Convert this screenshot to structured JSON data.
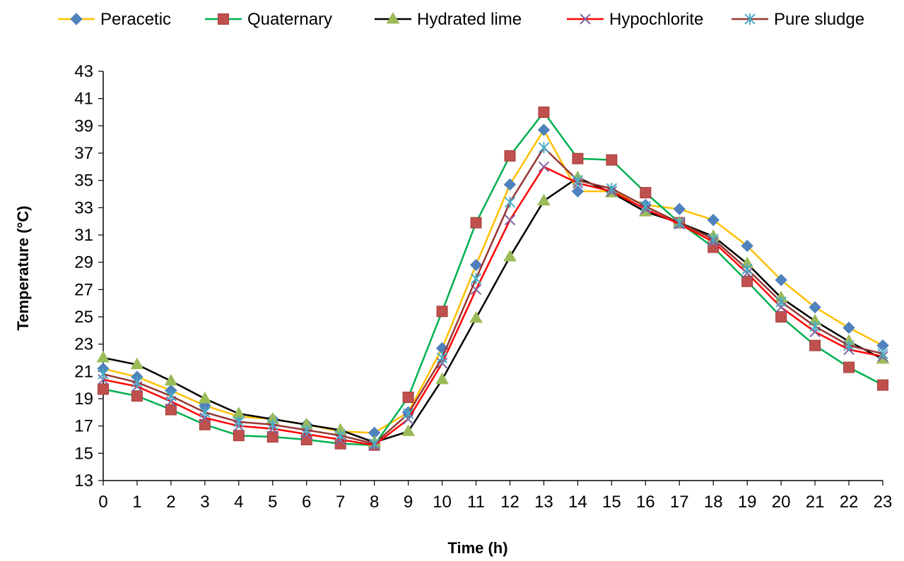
{
  "chart_data": {
    "type": "line",
    "xlabel": "Time (h)",
    "ylabel": "Temperature (°C)",
    "ylim": [
      13,
      43
    ],
    "yticks": [
      13,
      15,
      17,
      19,
      21,
      23,
      25,
      27,
      29,
      31,
      33,
      35,
      37,
      39,
      41,
      43
    ],
    "x": [
      0,
      1,
      2,
      3,
      4,
      5,
      6,
      7,
      8,
      9,
      10,
      11,
      12,
      13,
      14,
      15,
      16,
      17,
      18,
      19,
      20,
      21,
      22,
      23
    ],
    "x_tick_labels": [
      "0",
      "1",
      "2",
      "3",
      "4",
      "5",
      "6",
      "7",
      "8",
      "9",
      "10",
      "11",
      "12",
      "13",
      "14",
      "15",
      "16",
      "17",
      "18",
      "19",
      "20",
      "21",
      "22",
      "23"
    ],
    "grid": false,
    "legend_position": "top",
    "series": [
      {
        "name": "Peracetic",
        "color": "#FFC000",
        "marker_color": "#4F81BD",
        "marker": "diamond",
        "values": [
          21.2,
          20.6,
          19.6,
          18.5,
          17.7,
          17.5,
          17.1,
          16.6,
          16.5,
          18.0,
          22.7,
          28.8,
          34.7,
          38.7,
          34.2,
          34.2,
          33.2,
          32.9,
          32.1,
          30.2,
          27.7,
          25.7,
          24.2,
          22.9
        ]
      },
      {
        "name": "Quaternary",
        "color": "#00B050",
        "marker_color": "#C0504D",
        "marker": "square",
        "values": [
          19.7,
          19.2,
          18.2,
          17.1,
          16.3,
          16.2,
          16.0,
          15.7,
          15.6,
          19.1,
          25.4,
          31.9,
          36.8,
          40.0,
          36.6,
          36.5,
          34.1,
          31.9,
          30.1,
          27.6,
          25.0,
          22.9,
          21.3,
          20.0
        ]
      },
      {
        "name": "Hydrated lime",
        "color": "#000000",
        "marker_color": "#9BBB59",
        "marker": "triangle",
        "values": [
          22.0,
          21.5,
          20.3,
          19.0,
          17.9,
          17.5,
          17.1,
          16.7,
          15.8,
          16.6,
          20.4,
          24.9,
          29.4,
          33.5,
          35.2,
          34.1,
          32.7,
          31.9,
          30.9,
          28.9,
          26.4,
          24.7,
          23.2,
          21.9
        ]
      },
      {
        "name": "Hypochlorite",
        "color": "#FF0000",
        "marker_color": "#8064A2",
        "marker": "x",
        "values": [
          20.4,
          19.9,
          18.8,
          17.6,
          17.0,
          16.8,
          16.4,
          16.0,
          15.6,
          17.5,
          21.6,
          27.0,
          32.1,
          36.0,
          34.8,
          34.2,
          32.9,
          31.8,
          30.5,
          28.2,
          25.7,
          23.9,
          22.6,
          22.1
        ]
      },
      {
        "name": "Pure sludge",
        "color": "#953735",
        "marker_color": "#4BACC6",
        "marker": "asterisk",
        "values": [
          20.8,
          20.2,
          19.2,
          18.0,
          17.3,
          17.1,
          16.7,
          16.3,
          15.7,
          17.9,
          22.0,
          27.8,
          33.4,
          37.4,
          35.0,
          34.4,
          33.1,
          31.9,
          30.7,
          28.5,
          26.1,
          24.3,
          22.9,
          22.3
        ]
      }
    ]
  }
}
